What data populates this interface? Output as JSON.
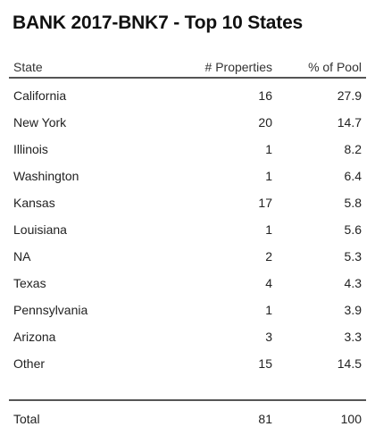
{
  "title": "BANK 2017-BNK7 - Top 10 States",
  "headers": {
    "state": "State",
    "properties": "# Properties",
    "pool": "% of Pool"
  },
  "rows": [
    {
      "state": "California",
      "properties": "16",
      "pool": "27.9"
    },
    {
      "state": "New York",
      "properties": "20",
      "pool": "14.7"
    },
    {
      "state": "Illinois",
      "properties": "1",
      "pool": "8.2"
    },
    {
      "state": "Washington",
      "properties": "1",
      "pool": "6.4"
    },
    {
      "state": "Kansas",
      "properties": "17",
      "pool": "5.8"
    },
    {
      "state": "Louisiana",
      "properties": "1",
      "pool": "5.6"
    },
    {
      "state": "NA",
      "properties": "2",
      "pool": "5.3"
    },
    {
      "state": "Texas",
      "properties": "4",
      "pool": "4.3"
    },
    {
      "state": "Pennsylvania",
      "properties": "1",
      "pool": "3.9"
    },
    {
      "state": "Arizona",
      "properties": "3",
      "pool": "3.3"
    },
    {
      "state": "Other",
      "properties": "15",
      "pool": "14.5"
    }
  ],
  "total": {
    "label": "Total",
    "properties": "81",
    "pool": "100"
  }
}
